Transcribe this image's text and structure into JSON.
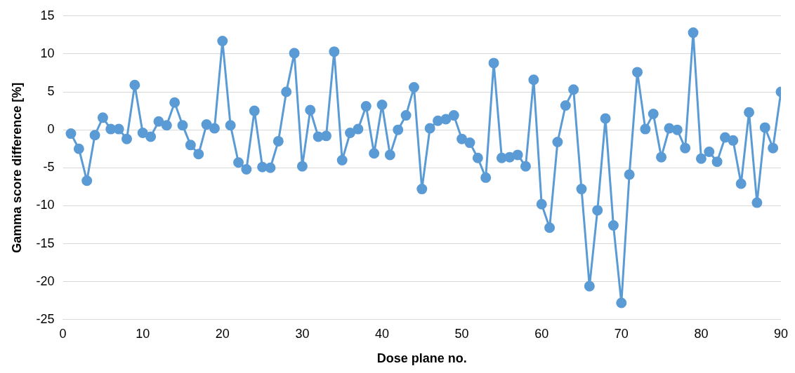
{
  "chart_data": {
    "type": "line",
    "xlabel": "Dose plane no.",
    "ylabel": "Gamma score difference [%]",
    "x": [
      1,
      2,
      3,
      4,
      5,
      6,
      7,
      8,
      9,
      10,
      11,
      12,
      13,
      14,
      15,
      16,
      17,
      18,
      19,
      20,
      21,
      22,
      23,
      24,
      25,
      26,
      27,
      28,
      29,
      30,
      31,
      32,
      33,
      34,
      35,
      36,
      37,
      38,
      39,
      40,
      41,
      42,
      43,
      44,
      45,
      46,
      47,
      48,
      49,
      50,
      51,
      52,
      53,
      54,
      55,
      56,
      57,
      58,
      59,
      60,
      61,
      62,
      63,
      64,
      65,
      66,
      67,
      68,
      69,
      70,
      71,
      72,
      73,
      74,
      75,
      76,
      77,
      78,
      79,
      80,
      81,
      82,
      83,
      84,
      85,
      86,
      87,
      88,
      89,
      90
    ],
    "series": [
      {
        "color": "#5b9bd5",
        "values": [
          -0.5,
          -2.5,
          -6.7,
          -0.7,
          1.6,
          0.1,
          0.1,
          -1.2,
          5.9,
          -0.4,
          -0.9,
          1.1,
          0.6,
          3.6,
          0.6,
          -2.0,
          -3.2,
          0.7,
          0.2,
          11.7,
          0.6,
          -4.3,
          -5.2,
          2.5,
          -4.9,
          -5.0,
          -1.5,
          5.0,
          10.1,
          -4.8,
          2.6,
          -0.9,
          -0.8,
          10.3,
          -4.0,
          -0.4,
          0.1,
          3.1,
          -3.1,
          3.3,
          -3.3,
          0.0,
          1.9,
          5.6,
          -7.8,
          0.2,
          1.2,
          1.4,
          1.9,
          -1.2,
          -1.7,
          -3.7,
          -6.3,
          8.8,
          -3.7,
          -3.6,
          -3.3,
          -4.8,
          6.6,
          -9.8,
          -12.9,
          -1.6,
          3.2,
          5.3,
          -7.8,
          -20.6,
          -10.6,
          1.5,
          -12.6,
          -22.8,
          -5.9,
          7.6,
          0.1,
          2.1,
          -3.6,
          0.2,
          0.0,
          -2.4,
          12.8,
          -3.8,
          -2.9,
          -4.2,
          -1.0,
          -1.4,
          -7.1,
          2.3,
          -9.6,
          0.3,
          -2.4,
          5.0
        ]
      }
    ],
    "xlim": [
      0,
      90
    ],
    "xticks": [
      0,
      10,
      20,
      30,
      40,
      50,
      60,
      70,
      80,
      90
    ],
    "ylim": [
      -25,
      15
    ],
    "yticks": [
      -25,
      -20,
      -15,
      -10,
      -5,
      0,
      5,
      10,
      15
    ],
    "grid": "y",
    "legend": false,
    "marker": "circle",
    "line_style": "solid"
  }
}
